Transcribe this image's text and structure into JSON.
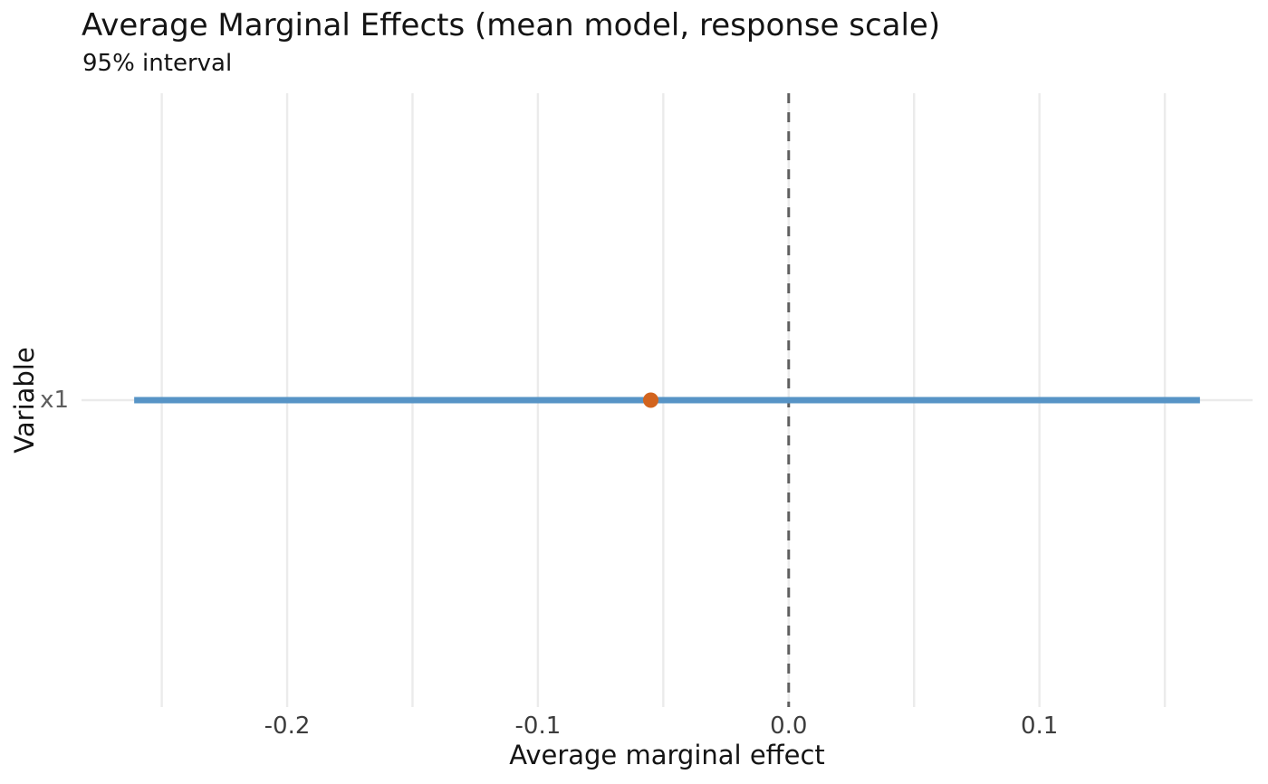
{
  "chart_data": {
    "type": "scatter",
    "subtype": "point-range-errorbar",
    "title": "Average Marginal Effects (mean model, response scale)",
    "subtitle": "95% interval",
    "xlabel": "Average marginal effect",
    "ylabel": "Variable",
    "categories": [
      "x1"
    ],
    "series": [
      {
        "name": "x1",
        "estimate": -0.055,
        "conf_low": -0.261,
        "conf_high": 0.164,
        "interval": "95%"
      }
    ],
    "xlim": [
      -0.282,
      0.185
    ],
    "x_ticks": [
      -0.2,
      -0.1,
      0.0,
      0.1
    ],
    "x_tick_labels": [
      "-0.2",
      "-0.1",
      "0.0",
      "0.1"
    ],
    "x_gridlines": [
      -0.25,
      -0.2,
      -0.15,
      -0.1,
      -0.05,
      0.0,
      0.05,
      0.1,
      0.15
    ],
    "reference_line_x": 0.0,
    "grid": true,
    "legend": "none"
  },
  "colors": {
    "background": "#ffffff",
    "ci_bar": "#5794c6",
    "estimate_point": "#d2641e",
    "grid": "#ebebeb",
    "reference_line": "#5f5f5f",
    "title_text": "#141414",
    "axis_title_text": "#141414",
    "x_tick_text": "#3d3d3d",
    "y_tick_text": "#5d5d5d"
  }
}
